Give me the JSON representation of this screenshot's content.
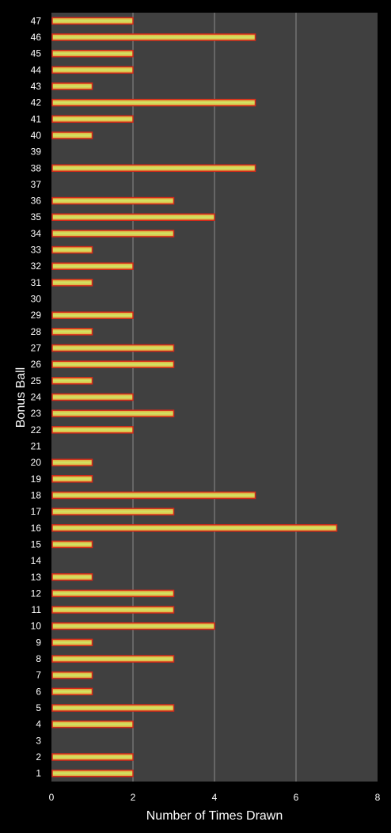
{
  "chart_data": {
    "type": "bar",
    "orientation": "horizontal",
    "xlabel": "Number of Times Drawn",
    "ylabel": "Bonus Ball",
    "xlim": [
      0,
      8
    ],
    "xticks": [
      "0",
      "2",
      "4",
      "6",
      "8"
    ],
    "grid": "vertical",
    "legend": "none",
    "categories": [
      "1",
      "2",
      "3",
      "4",
      "5",
      "6",
      "7",
      "8",
      "9",
      "10",
      "11",
      "12",
      "13",
      "14",
      "15",
      "16",
      "17",
      "18",
      "19",
      "20",
      "21",
      "22",
      "23",
      "24",
      "25",
      "26",
      "27",
      "28",
      "29",
      "30",
      "31",
      "32",
      "33",
      "34",
      "35",
      "36",
      "37",
      "38",
      "39",
      "40",
      "41",
      "42",
      "43",
      "44",
      "45",
      "46",
      "47"
    ],
    "values": [
      2,
      2,
      0,
      2,
      3,
      1,
      1,
      3,
      1,
      4,
      3,
      3,
      1,
      0,
      1,
      7,
      3,
      5,
      1,
      1,
      0,
      2,
      3,
      2,
      1,
      3,
      3,
      1,
      2,
      0,
      1,
      2,
      1,
      3,
      4,
      3,
      0,
      5,
      0,
      1,
      2,
      5,
      1,
      2,
      2,
      5,
      2
    ],
    "colors": {
      "background": "#000000",
      "plot_area": "#404040",
      "gridline": "#8c8c8c",
      "bar_border": "#d42a1a",
      "bar_edge": "#e8a23a",
      "bar_center": "#cfe865",
      "text": "#ffffff"
    }
  }
}
